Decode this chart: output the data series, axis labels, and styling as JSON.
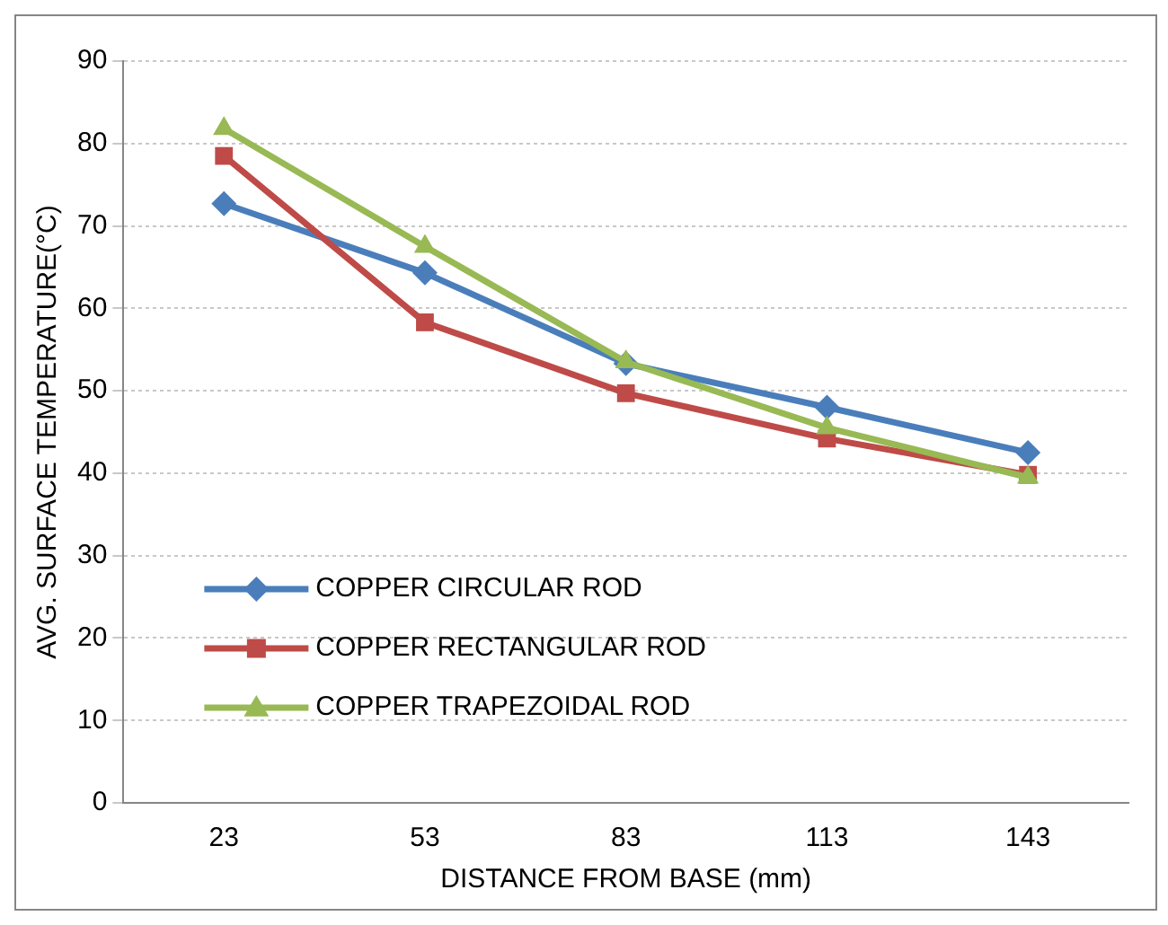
{
  "chart_data": {
    "type": "line",
    "xlabel": "DISTANCE FROM BASE (mm)",
    "ylabel": "AVG. SURFACE TEMPERATURE(°C)",
    "categories": [
      "23",
      "53",
      "83",
      "113",
      "143"
    ],
    "series": [
      {
        "name": "COPPER CIRCULAR ROD",
        "color": "#4a7ebb",
        "marker": "diamond",
        "values": [
          72.7,
          64.3,
          53.3,
          48,
          42.5
        ]
      },
      {
        "name": "COPPER RECTANGULAR ROD",
        "color": "#be4b48",
        "marker": "square",
        "values": [
          78.5,
          58.3,
          49.7,
          44.2,
          39.8
        ]
      },
      {
        "name": "COPPER TRAPEZOIDAL ROD",
        "color": "#98b954",
        "marker": "triangle",
        "values": [
          81.8,
          67.5,
          53.5,
          45.5,
          39.5
        ]
      }
    ],
    "ylim": [
      0,
      90
    ],
    "yticks": [
      0,
      10,
      20,
      30,
      40,
      50,
      60,
      70,
      80,
      90
    ],
    "grid": "y",
    "legend": "bottom left"
  }
}
